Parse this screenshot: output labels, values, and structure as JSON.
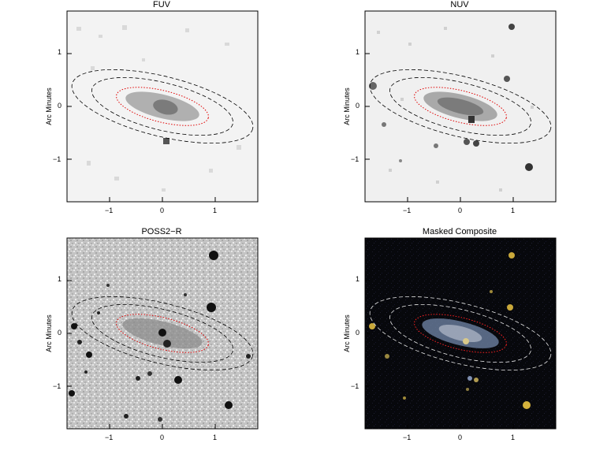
{
  "figure": {
    "panels": [
      {
        "id": "fuv",
        "title": "FUV",
        "ylabel": "Arc Minutes",
        "theme": "light"
      },
      {
        "id": "nuv",
        "title": "NUV",
        "ylabel": "Arc Minutes",
        "theme": "light"
      },
      {
        "id": "poss",
        "title": "POSS2−R",
        "ylabel": "Arc Minutes",
        "theme": "gray"
      },
      {
        "id": "comp",
        "title": "Masked Composite",
        "ylabel": "Arc Minutes",
        "theme": "dark"
      }
    ],
    "x_ticks": [
      "−1",
      "0",
      "1"
    ],
    "y_ticks": [
      "1",
      "0",
      "−1"
    ],
    "axis_range_arcmin": [
      -1.8,
      1.8
    ]
  }
}
